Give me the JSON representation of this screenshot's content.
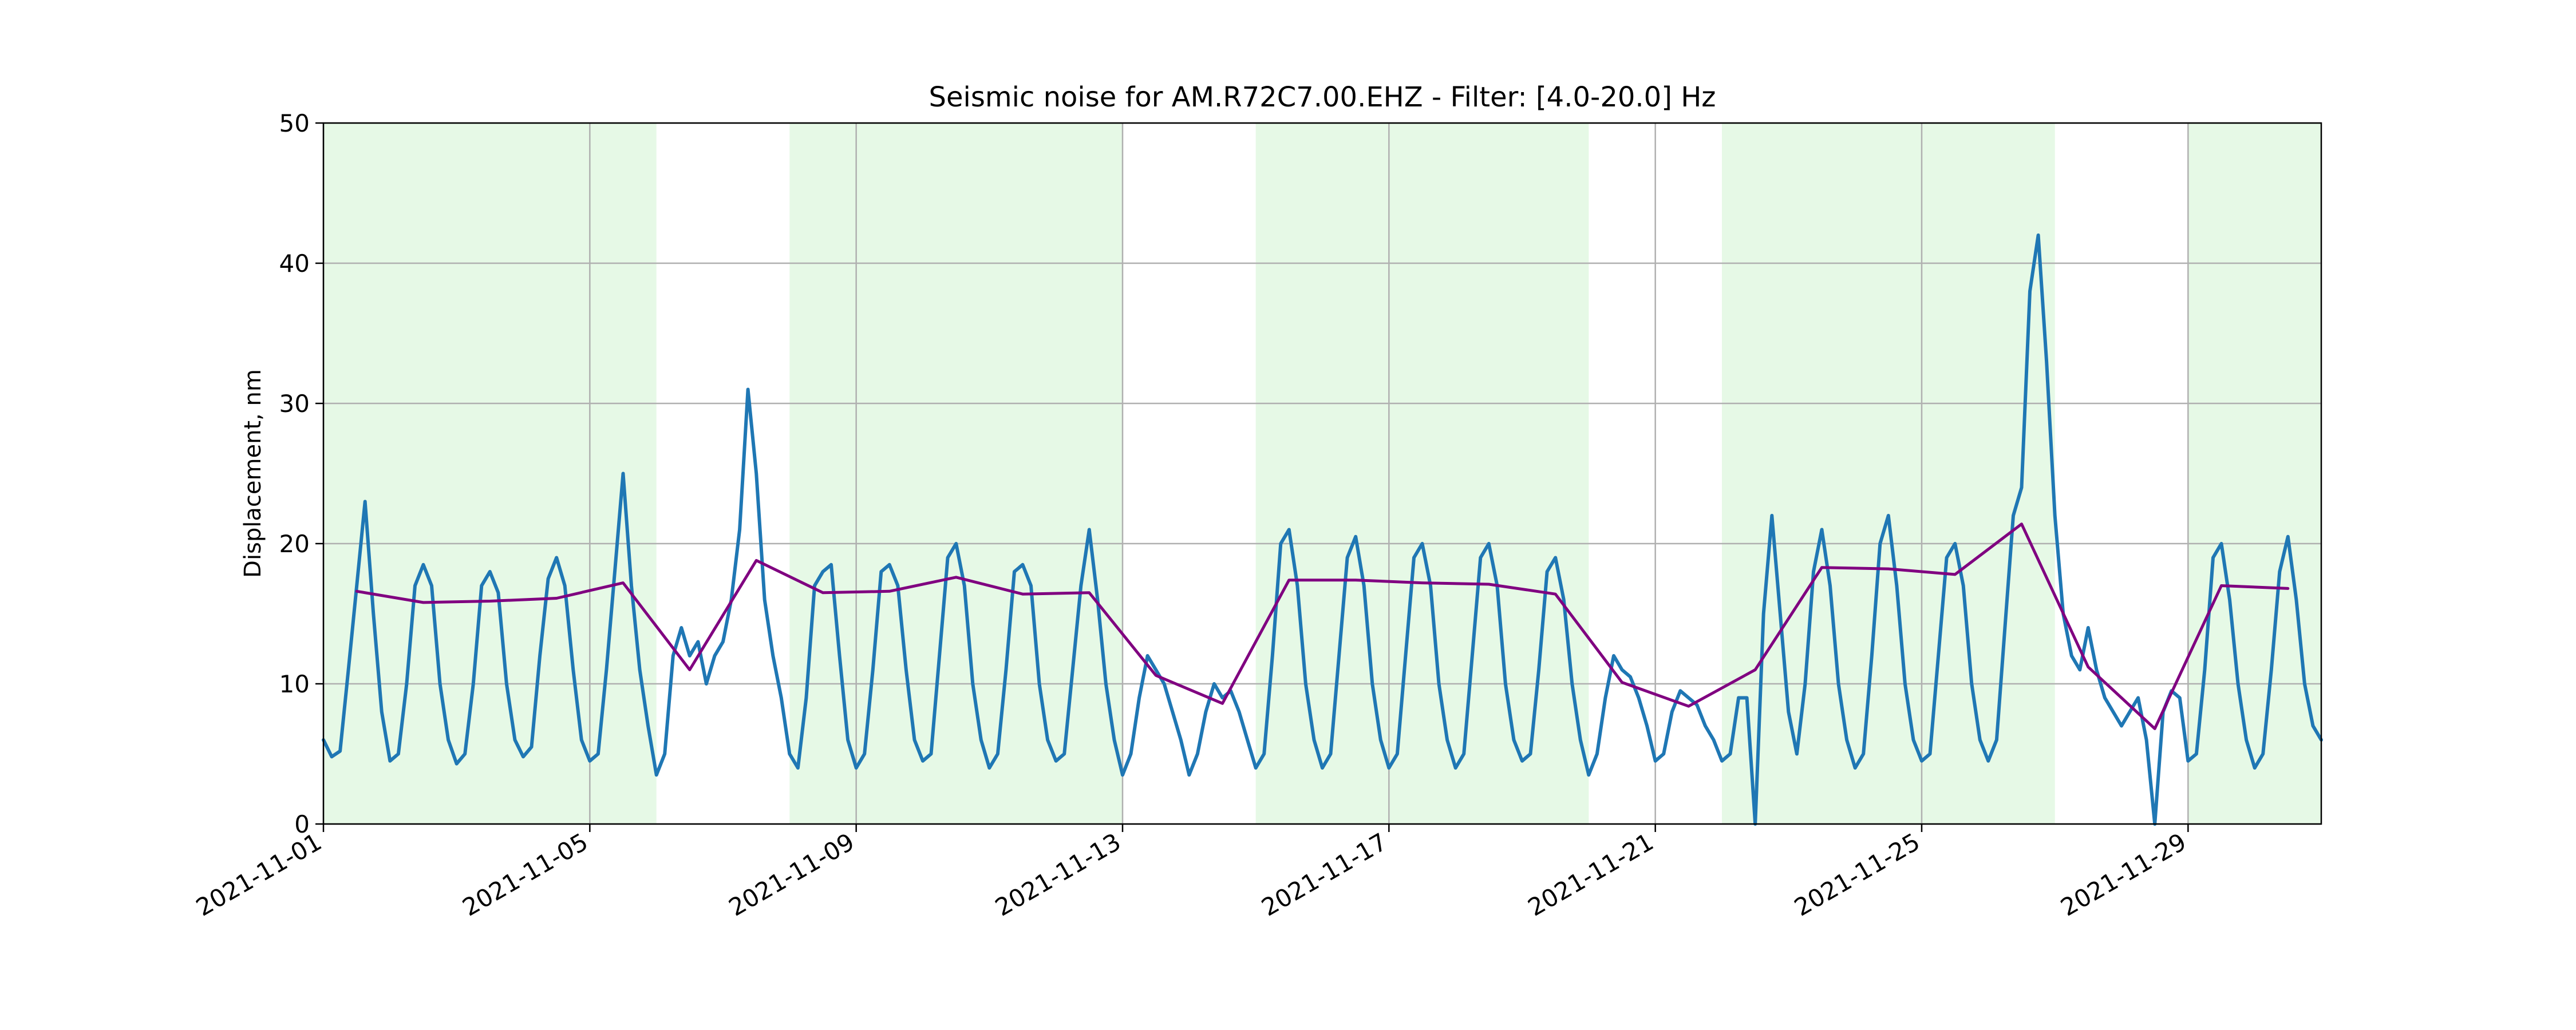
{
  "chart_data": {
    "type": "line",
    "title": "Seismic noise for AM.R72C7.00.EHZ - Filter: [4.0-20.0] Hz",
    "xlabel": "",
    "ylabel": "Displacement, nm",
    "xlim": [
      "2021-11-01",
      "2021-12-01"
    ],
    "ylim": [
      0,
      50
    ],
    "grid": true,
    "xticks": [
      "2021-11-01",
      "2021-11-05",
      "2021-11-09",
      "2021-11-13",
      "2021-11-17",
      "2021-11-21",
      "2021-11-25",
      "2021-11-29"
    ],
    "yticks": [
      0,
      10,
      20,
      30,
      40,
      50
    ],
    "shaded_spans": [
      {
        "start": "2021-11-01",
        "end": "2021-11-06",
        "color": "#e6f9e6"
      },
      {
        "start": "2021-11-08",
        "end": "2021-11-13",
        "color": "#e6f9e6"
      },
      {
        "start": "2021-11-15",
        "end": "2021-11-20",
        "color": "#e6f9e6"
      },
      {
        "start": "2021-11-22",
        "end": "2021-11-27",
        "color": "#e6f9e6"
      },
      {
        "start": "2021-11-29",
        "end": "2021-12-01",
        "color": "#e6f9e6"
      }
    ],
    "series": [
      {
        "color": "#1f77b4",
        "x": [
          "2021-11-01T00:00",
          "2021-11-01T03:00",
          "2021-11-01T06:00",
          "2021-11-01T09:00",
          "2021-11-01T12:00",
          "2021-11-01T15:00",
          "2021-11-01T18:00",
          "2021-11-01T21:00",
          "2021-11-02T00:00",
          "2021-11-02T03:00",
          "2021-11-02T06:00",
          "2021-11-02T09:00",
          "2021-11-02T12:00",
          "2021-11-02T15:00",
          "2021-11-02T18:00",
          "2021-11-02T21:00",
          "2021-11-03T00:00",
          "2021-11-03T03:00",
          "2021-11-03T06:00",
          "2021-11-03T09:00",
          "2021-11-03T12:00",
          "2021-11-03T15:00",
          "2021-11-03T18:00",
          "2021-11-03T21:00",
          "2021-11-04T00:00",
          "2021-11-04T03:00",
          "2021-11-04T06:00",
          "2021-11-04T09:00",
          "2021-11-04T12:00",
          "2021-11-04T15:00",
          "2021-11-04T18:00",
          "2021-11-04T21:00",
          "2021-11-05T00:00",
          "2021-11-05T03:00",
          "2021-11-05T06:00",
          "2021-11-05T09:00",
          "2021-11-05T12:00",
          "2021-11-05T15:00",
          "2021-11-05T18:00",
          "2021-11-05T21:00",
          "2021-11-06T00:00",
          "2021-11-06T03:00",
          "2021-11-06T06:00",
          "2021-11-06T09:00",
          "2021-11-06T12:00",
          "2021-11-06T15:00",
          "2021-11-06T18:00",
          "2021-11-06T21:00",
          "2021-11-07T00:00",
          "2021-11-07T03:00",
          "2021-11-07T06:00",
          "2021-11-07T09:00",
          "2021-11-07T12:00",
          "2021-11-07T15:00",
          "2021-11-07T18:00",
          "2021-11-07T21:00",
          "2021-11-08T00:00",
          "2021-11-08T03:00",
          "2021-11-08T06:00",
          "2021-11-08T09:00",
          "2021-11-08T12:00",
          "2021-11-08T15:00",
          "2021-11-08T18:00",
          "2021-11-08T21:00",
          "2021-11-09T00:00",
          "2021-11-09T03:00",
          "2021-11-09T06:00",
          "2021-11-09T09:00",
          "2021-11-09T12:00",
          "2021-11-09T15:00",
          "2021-11-09T18:00",
          "2021-11-09T21:00",
          "2021-11-10T00:00",
          "2021-11-10T03:00",
          "2021-11-10T06:00",
          "2021-11-10T09:00",
          "2021-11-10T12:00",
          "2021-11-10T15:00",
          "2021-11-10T18:00",
          "2021-11-10T21:00",
          "2021-11-11T00:00",
          "2021-11-11T03:00",
          "2021-11-11T06:00",
          "2021-11-11T09:00",
          "2021-11-11T12:00",
          "2021-11-11T15:00",
          "2021-11-11T18:00",
          "2021-11-11T21:00",
          "2021-11-12T00:00",
          "2021-11-12T03:00",
          "2021-11-12T06:00",
          "2021-11-12T09:00",
          "2021-11-12T12:00",
          "2021-11-12T15:00",
          "2021-11-12T18:00",
          "2021-11-12T21:00",
          "2021-11-13T00:00",
          "2021-11-13T03:00",
          "2021-11-13T06:00",
          "2021-11-13T09:00",
          "2021-11-13T12:00",
          "2021-11-13T15:00",
          "2021-11-13T18:00",
          "2021-11-13T21:00",
          "2021-11-14T00:00",
          "2021-11-14T03:00",
          "2021-11-14T06:00",
          "2021-11-14T09:00",
          "2021-11-14T12:00",
          "2021-11-14T15:00",
          "2021-11-14T18:00",
          "2021-11-14T21:00",
          "2021-11-15T00:00",
          "2021-11-15T03:00",
          "2021-11-15T06:00",
          "2021-11-15T09:00",
          "2021-11-15T12:00",
          "2021-11-15T15:00",
          "2021-11-15T18:00",
          "2021-11-15T21:00",
          "2021-11-16T00:00",
          "2021-11-16T03:00",
          "2021-11-16T06:00",
          "2021-11-16T09:00",
          "2021-11-16T12:00",
          "2021-11-16T15:00",
          "2021-11-16T18:00",
          "2021-11-16T21:00",
          "2021-11-17T00:00",
          "2021-11-17T03:00",
          "2021-11-17T06:00",
          "2021-11-17T09:00",
          "2021-11-17T12:00",
          "2021-11-17T15:00",
          "2021-11-17T18:00",
          "2021-11-17T21:00",
          "2021-11-18T00:00",
          "2021-11-18T03:00",
          "2021-11-18T06:00",
          "2021-11-18T09:00",
          "2021-11-18T12:00",
          "2021-11-18T15:00",
          "2021-11-18T18:00",
          "2021-11-18T21:00",
          "2021-11-19T00:00",
          "2021-11-19T03:00",
          "2021-11-19T06:00",
          "2021-11-19T09:00",
          "2021-11-19T12:00",
          "2021-11-19T15:00",
          "2021-11-19T18:00",
          "2021-11-19T21:00",
          "2021-11-20T00:00",
          "2021-11-20T03:00",
          "2021-11-20T06:00",
          "2021-11-20T09:00",
          "2021-11-20T12:00",
          "2021-11-20T15:00",
          "2021-11-20T18:00",
          "2021-11-20T21:00",
          "2021-11-21T00:00",
          "2021-11-21T03:00",
          "2021-11-21T06:00",
          "2021-11-21T09:00",
          "2021-11-21T12:00",
          "2021-11-21T15:00",
          "2021-11-21T18:00",
          "2021-11-21T21:00",
          "2021-11-22T00:00",
          "2021-11-22T03:00",
          "2021-11-22T06:00",
          "2021-11-22T09:00",
          "2021-11-22T12:00",
          "2021-11-22T15:00",
          "2021-11-22T18:00",
          "2021-11-22T21:00",
          "2021-11-23T00:00",
          "2021-11-23T03:00",
          "2021-11-23T06:00",
          "2021-11-23T09:00",
          "2021-11-23T12:00",
          "2021-11-23T15:00",
          "2021-11-23T18:00",
          "2021-11-23T21:00",
          "2021-11-24T00:00",
          "2021-11-24T03:00",
          "2021-11-24T06:00",
          "2021-11-24T09:00",
          "2021-11-24T12:00",
          "2021-11-24T15:00",
          "2021-11-24T18:00",
          "2021-11-24T21:00",
          "2021-11-25T00:00",
          "2021-11-25T03:00",
          "2021-11-25T06:00",
          "2021-11-25T09:00",
          "2021-11-25T12:00",
          "2021-11-25T15:00",
          "2021-11-25T18:00",
          "2021-11-25T21:00",
          "2021-11-26T00:00",
          "2021-11-26T03:00",
          "2021-11-26T06:00",
          "2021-11-26T09:00",
          "2021-11-26T12:00",
          "2021-11-26T15:00",
          "2021-11-26T18:00",
          "2021-11-26T21:00",
          "2021-11-27T00:00",
          "2021-11-27T03:00",
          "2021-11-27T06:00",
          "2021-11-27T09:00",
          "2021-11-27T12:00",
          "2021-11-27T15:00",
          "2021-11-27T18:00",
          "2021-11-27T21:00",
          "2021-11-28T00:00",
          "2021-11-28T03:00",
          "2021-11-28T06:00",
          "2021-11-28T09:00",
          "2021-11-28T12:00",
          "2021-11-28T15:00",
          "2021-11-28T18:00",
          "2021-11-28T21:00",
          "2021-11-29T00:00",
          "2021-11-29T03:00",
          "2021-11-29T06:00",
          "2021-11-29T09:00",
          "2021-11-29T12:00",
          "2021-11-29T15:00",
          "2021-11-29T18:00",
          "2021-11-29T21:00",
          "2021-11-30T00:00",
          "2021-11-30T03:00",
          "2021-11-30T06:00",
          "2021-11-30T09:00",
          "2021-11-30T12:00",
          "2021-11-30T15:00",
          "2021-11-30T18:00",
          "2021-11-30T21:00",
          "2021-12-01T00:00"
        ],
        "values": [
          6.0,
          4.8,
          5.2,
          11.0,
          17.0,
          23.0,
          15.0,
          8.0,
          4.5,
          5.0,
          10.0,
          17.0,
          18.5,
          17.0,
          10.0,
          6.0,
          4.3,
          5.0,
          10.0,
          17.0,
          18.0,
          16.5,
          10.0,
          6.0,
          4.8,
          5.5,
          12.0,
          17.5,
          19.0,
          17.0,
          11.0,
          6.0,
          4.5,
          5.0,
          11.0,
          18.0,
          25.0,
          17.0,
          11.0,
          7.0,
          3.5,
          5.0,
          12.0,
          14.0,
          12.0,
          13.0,
          10.0,
          12.0,
          13.0,
          16.0,
          21.0,
          31.0,
          25.0,
          16.0,
          12.0,
          9.0,
          5.0,
          4.0,
          9.0,
          17.0,
          18.0,
          18.5,
          12.0,
          6.0,
          4.0,
          5.0,
          11.0,
          18.0,
          18.5,
          17.0,
          11.0,
          6.0,
          4.5,
          5.0,
          12.0,
          19.0,
          20.0,
          17.0,
          10.0,
          6.0,
          4.0,
          5.0,
          11.0,
          18.0,
          18.5,
          17.0,
          10.0,
          6.0,
          4.5,
          5.0,
          11.0,
          17.0,
          21.0,
          16.0,
          10.0,
          6.0,
          3.5,
          5.0,
          9.0,
          12.0,
          11.0,
          10.0,
          8.0,
          6.0,
          3.5,
          5.0,
          8.0,
          10.0,
          9.0,
          9.5,
          8.0,
          6.0,
          4.0,
          5.0,
          12.0,
          20.0,
          21.0,
          17.0,
          10.0,
          6.0,
          4.0,
          5.0,
          12.0,
          19.0,
          20.5,
          17.0,
          10.0,
          6.0,
          4.0,
          5.0,
          12.0,
          19.0,
          20.0,
          17.0,
          10.0,
          6.0,
          4.0,
          5.0,
          12.0,
          19.0,
          20.0,
          17.0,
          10.0,
          6.0,
          4.5,
          5.0,
          11.0,
          18.0,
          19.0,
          16.0,
          10.0,
          6.0,
          3.5,
          5.0,
          9.0,
          12.0,
          11.0,
          10.5,
          9.0,
          7.0,
          4.5,
          5.0,
          8.0,
          9.5,
          9.0,
          8.5,
          7.0,
          6.0,
          4.5,
          5.0,
          9.0,
          9.0,
          0.0,
          15.0,
          22.0,
          15.0,
          8.0,
          5.0,
          10.0,
          18.0,
          21.0,
          17.0,
          10.0,
          6.0,
          4.0,
          5.0,
          12.0,
          20.0,
          22.0,
          17.0,
          10.0,
          6.0,
          4.5,
          5.0,
          12.0,
          19.0,
          20.0,
          17.0,
          10.0,
          6.0,
          4.5,
          6.0,
          14.0,
          22.0,
          24.0,
          38.0,
          42.0,
          33.0,
          22.0,
          15.0,
          12.0,
          11.0,
          14.0,
          11.0,
          9.0,
          8.0,
          7.0,
          8.0,
          9.0,
          6.0,
          0.0,
          8.0,
          9.5,
          9.0,
          4.5,
          5.0,
          11.0,
          19.0,
          20.0,
          16.0,
          10.0,
          6.0,
          4.0,
          5.0,
          11.0,
          18.0,
          20.5,
          16.0,
          10.0,
          7.0,
          6.0
        ]
      },
      {
        "color": "#800080",
        "x": [
          "2021-11-01T12:00",
          "2021-11-02T12:00",
          "2021-11-03T12:00",
          "2021-11-04T12:00",
          "2021-11-05T12:00",
          "2021-11-06T12:00",
          "2021-11-07T12:00",
          "2021-11-08T12:00",
          "2021-11-09T12:00",
          "2021-11-10T12:00",
          "2021-11-11T12:00",
          "2021-11-12T12:00",
          "2021-11-13T12:00",
          "2021-11-14T12:00",
          "2021-11-15T12:00",
          "2021-11-16T12:00",
          "2021-11-17T12:00",
          "2021-11-18T12:00",
          "2021-11-19T12:00",
          "2021-11-20T12:00",
          "2021-11-21T12:00",
          "2021-11-22T12:00",
          "2021-11-23T12:00",
          "2021-11-24T12:00",
          "2021-11-25T12:00",
          "2021-11-26T12:00",
          "2021-11-27T12:00",
          "2021-11-28T12:00",
          "2021-11-29T12:00",
          "2021-11-30T12:00"
        ],
        "values": [
          16.6,
          15.8,
          15.9,
          16.1,
          17.2,
          11.0,
          18.8,
          16.5,
          16.6,
          17.6,
          16.4,
          16.5,
          10.6,
          8.6,
          17.4,
          17.4,
          17.2,
          17.1,
          16.4,
          10.1,
          8.4,
          11.0,
          18.3,
          18.2,
          17.8,
          21.4,
          11.2,
          6.8,
          17.0,
          16.8
        ]
      }
    ]
  }
}
